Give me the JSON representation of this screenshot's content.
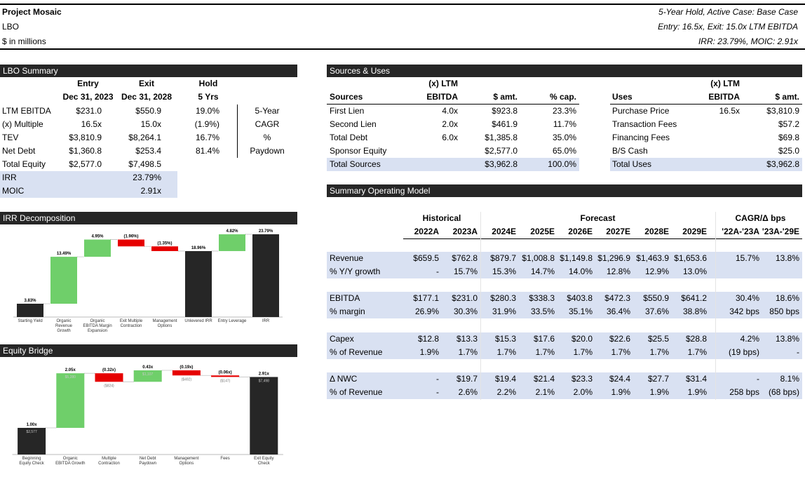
{
  "header": {
    "title": "Project Mosaic",
    "line2": "LBO",
    "line3": "$ in millions",
    "right1": "5-Year Hold, Active Case: Base Case",
    "right2": "Entry: 16.5x, Exit: 15.0x LTM EBITDA",
    "right3": "IRR: 23.79%, MOIC: 2.91x"
  },
  "lbo_summary": {
    "title": "LBO Summary",
    "header_rows": [
      [
        null,
        "Entry",
        "Exit",
        "Hold",
        null
      ],
      [
        null,
        "Dec 31, 2023",
        "Dec 31, 2028",
        "5 Yrs",
        null
      ]
    ],
    "rows": [
      [
        "LTM EBITDA",
        "$231.0",
        "$550.9",
        "19.0%",
        "5-Year"
      ],
      [
        "(x) Multiple",
        "16.5x",
        "15.0x",
        "(1.9%)",
        "CAGR"
      ],
      [
        "TEV",
        "$3,810.9",
        "$8,264.1",
        "16.7%",
        "%"
      ],
      [
        "Net Debt",
        "$1,360.8",
        "$253.4",
        "81.4%",
        "Paydown"
      ],
      [
        "Total Equity",
        "$2,577.0",
        "$7,498.5",
        null,
        null
      ]
    ],
    "highlight_rows": [
      [
        "IRR",
        null,
        "23.79%"
      ],
      [
        "MOIC",
        null,
        "2.91x"
      ]
    ]
  },
  "sources_uses": {
    "title": "Sources & Uses",
    "sources": {
      "header_top": [
        null,
        "(x) LTM",
        null,
        null
      ],
      "header": [
        "Sources",
        "EBITDA",
        "$ amt.",
        "% cap."
      ],
      "rows": [
        [
          "First Lien",
          "4.0x",
          "$923.8",
          "23.3%"
        ],
        [
          "Second Lien",
          "2.0x",
          "$461.9",
          "11.7%"
        ],
        [
          "Total Debt",
          "6.0x",
          "$1,385.8",
          "35.0%"
        ],
        [
          "Sponsor Equity",
          null,
          "$2,577.0",
          "65.0%"
        ]
      ],
      "total": [
        "Total Sources",
        null,
        "$3,962.8",
        "100.0%"
      ]
    },
    "uses": {
      "header_top": [
        null,
        "(x) LTM",
        null
      ],
      "header": [
        "Uses",
        "EBITDA",
        "$ amt."
      ],
      "rows": [
        [
          "Purchase Price",
          "16.5x",
          "$3,810.9"
        ],
        [
          "Transaction Fees",
          null,
          "$57.2"
        ],
        [
          "Financing Fees",
          null,
          "$69.8"
        ],
        [
          "B/S Cash",
          null,
          "$25.0"
        ]
      ],
      "total": [
        "Total Uses",
        null,
        "$3,962.8"
      ]
    }
  },
  "operating_model": {
    "title": "Summary Operating Model",
    "groups": [
      "Historical",
      "Forecast",
      "CAGR/Δ bps"
    ],
    "columns": [
      "2022A",
      "2023A",
      "2024E",
      "2025E",
      "2026E",
      "2027E",
      "2028E",
      "2029E",
      "'22A-'23A",
      "'23A-'29E"
    ],
    "blocks": [
      [
        [
          "Revenue",
          "$659.5",
          "$762.8",
          "$879.7",
          "$1,008.8",
          "$1,149.8",
          "$1,296.9",
          "$1,463.9",
          "$1,653.6",
          "15.7%",
          "13.8%"
        ],
        [
          "% Y/Y growth",
          "-",
          "15.7%",
          "15.3%",
          "14.7%",
          "14.0%",
          "12.8%",
          "12.9%",
          "13.0%",
          null,
          null
        ]
      ],
      [
        [
          "EBITDA",
          "$177.1",
          "$231.0",
          "$280.3",
          "$338.3",
          "$403.8",
          "$472.3",
          "$550.9",
          "$641.2",
          "30.4%",
          "18.6%"
        ],
        [
          "% margin",
          "26.9%",
          "30.3%",
          "31.9%",
          "33.5%",
          "35.1%",
          "36.4%",
          "37.6%",
          "38.8%",
          "342 bps",
          "850 bps"
        ]
      ],
      [
        [
          "Capex",
          "$12.8",
          "$13.3",
          "$15.3",
          "$17.6",
          "$20.0",
          "$22.6",
          "$25.5",
          "$28.8",
          "4.2%",
          "13.8%"
        ],
        [
          "% of Revenue",
          "1.9%",
          "1.7%",
          "1.7%",
          "1.7%",
          "1.7%",
          "1.7%",
          "1.7%",
          "1.7%",
          "(19 bps)",
          "-"
        ]
      ],
      [
        [
          "Δ NWC",
          "-",
          "$19.7",
          "$19.4",
          "$21.4",
          "$23.3",
          "$24.4",
          "$27.7",
          "$31.4",
          "-",
          "8.1%"
        ],
        [
          "% of Revenue",
          "-",
          "2.6%",
          "2.2%",
          "2.1%",
          "2.0%",
          "1.9%",
          "1.9%",
          "1.9%",
          "258 bps",
          "(68 bps)"
        ]
      ]
    ]
  },
  "chart_data": [
    {
      "type": "waterfall",
      "title": "IRR Decomposition",
      "categories": [
        "Starting Yield",
        "Organic Revenue Growth",
        "Organic EBITDA Margin Expansion",
        "Exit Multiple Contraction",
        "Management Options",
        "Unlevered IRR",
        "Entry Leverage",
        "IRR"
      ],
      "measure": [
        "absolute",
        "relative",
        "relative",
        "relative",
        "relative",
        "total",
        "relative",
        "total"
      ],
      "values": [
        3.83,
        13.49,
        4.95,
        -1.96,
        -1.35,
        18.96,
        4.82,
        23.79
      ],
      "value_labels": [
        "3.83%",
        "13.49%",
        "4.95%",
        "(1.96%)",
        "(1.35%)",
        "18.96%",
        "4.82%",
        "23.79%"
      ],
      "colors": {
        "increase": "#6fcf6a",
        "decrease": "#e60000",
        "total": "#262626"
      }
    },
    {
      "type": "waterfall",
      "title": "Equity Bridge",
      "categories": [
        "Beginning Equity Check",
        "Organic EBITDA Growth",
        "Multiple Contraction",
        "Net Debt Paydown",
        "Management Options",
        "Fees",
        "Exit Equity Check"
      ],
      "measure": [
        "absolute",
        "relative",
        "relative",
        "relative",
        "relative",
        "relative",
        "total"
      ],
      "values": [
        2577,
        5280,
        -824,
        1107,
        -492,
        -147,
        7498
      ],
      "value_labels": [
        "$2,577",
        "$5,280",
        "($824)",
        "$1,107",
        "($492)",
        "($147)",
        "$7,498"
      ],
      "multiple_labels": [
        "1.00x",
        "2.05x",
        "(0.32x)",
        "0.43x",
        "(0.19x)",
        "(0.06x)",
        "2.91x"
      ],
      "colors": {
        "increase": "#6fcf6a",
        "decrease": "#e60000",
        "total": "#262626"
      }
    }
  ]
}
